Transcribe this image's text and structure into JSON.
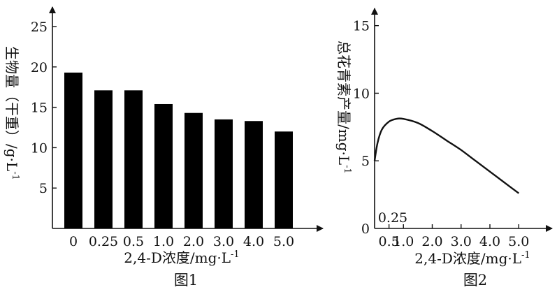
{
  "colors": {
    "ink": "#111111",
    "bar": "#000000",
    "background": "#ffffff"
  },
  "chart_data": [
    {
      "type": "bar",
      "caption": "图1",
      "categories": [
        "0",
        "0.25",
        "0.5",
        "1.0",
        "2.0",
        "3.0",
        "4.0",
        "5.0"
      ],
      "values": [
        19.3,
        17.1,
        17.1,
        15.4,
        14.3,
        13.5,
        13.3,
        12.0
      ],
      "xlabel": "2,4-D浓度/mg·L",
      "xlabel_sup": "-1",
      "ylabel": "生物量（干重）/g·L",
      "ylabel_sup": "-1",
      "ylim": [
        0,
        25
      ],
      "yticks": [
        "5",
        "10",
        "15",
        "20",
        "25"
      ],
      "grid": false,
      "legend": "none"
    },
    {
      "type": "line",
      "caption": "图2",
      "xlabel": "2,4-D浓度/mg·L",
      "xlabel_sup": "-1",
      "ylabel": "总花青素产量/mg·L",
      "ylabel_sup": "-1",
      "xlim": [
        0,
        5.6
      ],
      "ylim": [
        0,
        15.5
      ],
      "xtick_labels": [
        "0.5",
        "1.0",
        "2.0",
        "3.0",
        "4.0",
        "5.0"
      ],
      "xtick_values": [
        0.5,
        1.0,
        2.0,
        3.0,
        4.0,
        5.0
      ],
      "x_annotation": "0.25",
      "yticks": [
        "0",
        "5",
        "10",
        "15"
      ],
      "series": [
        {
          "x": [
            0,
            0.1,
            0.25,
            0.5,
            0.75,
            1.0,
            1.5,
            2.0,
            2.5,
            3.0,
            3.5,
            4.0,
            4.5,
            5.0
          ],
          "y": [
            5.0,
            6.3,
            7.3,
            7.9,
            8.1,
            8.1,
            7.8,
            7.2,
            6.5,
            5.8,
            5.0,
            4.2,
            3.4,
            2.6
          ]
        }
      ],
      "grid": false,
      "legend": "none"
    }
  ]
}
